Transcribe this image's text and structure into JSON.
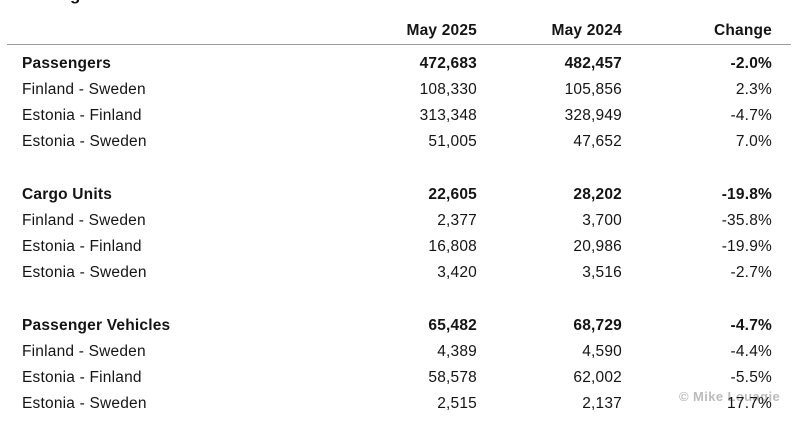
{
  "page": {
    "cropped_title_fragment": "g",
    "watermark": "© Mike Louagie"
  },
  "table": {
    "columns": [
      "May 2025",
      "May 2024",
      "Change"
    ],
    "groups": [
      {
        "header": {
          "label": "Passengers",
          "may2025": "472,683",
          "may2024": "482,457",
          "change": "-2.0%"
        },
        "rows": [
          {
            "label": "Finland - Sweden",
            "may2025": "108,330",
            "may2024": "105,856",
            "change": "2.3%"
          },
          {
            "label": "Estonia - Finland",
            "may2025": "313,348",
            "may2024": "328,949",
            "change": "-4.7%"
          },
          {
            "label": "Estonia - Sweden",
            "may2025": "51,005",
            "may2024": "47,652",
            "change": "7.0%"
          }
        ]
      },
      {
        "header": {
          "label": "Cargo Units",
          "may2025": "22,605",
          "may2024": "28,202",
          "change": "-19.8%"
        },
        "rows": [
          {
            "label": "Finland - Sweden",
            "may2025": "2,377",
            "may2024": "3,700",
            "change": "-35.8%"
          },
          {
            "label": "Estonia - Finland",
            "may2025": "16,808",
            "may2024": "20,986",
            "change": "-19.9%"
          },
          {
            "label": "Estonia - Sweden",
            "may2025": "3,420",
            "may2024": "3,516",
            "change": "-2.7%"
          }
        ]
      },
      {
        "header": {
          "label": "Passenger Vehicles",
          "may2025": "65,482",
          "may2024": "68,729",
          "change": "-4.7%"
        },
        "rows": [
          {
            "label": "Finland - Sweden",
            "may2025": "4,389",
            "may2024": "4,590",
            "change": "-4.4%"
          },
          {
            "label": "Estonia - Finland",
            "may2025": "58,578",
            "may2024": "62,002",
            "change": "-5.5%"
          },
          {
            "label": "Estonia - Sweden",
            "may2025": "2,515",
            "may2024": "2,137",
            "change": "17.7%"
          }
        ]
      }
    ]
  },
  "chart_data": {
    "type": "table",
    "title": "",
    "columns": [
      "",
      "May 2025",
      "May 2024",
      "Change"
    ],
    "rows": [
      [
        "Passengers",
        "472,683",
        "482,457",
        "-2.0%"
      ],
      [
        "Finland - Sweden",
        "108,330",
        "105,856",
        "2.3%"
      ],
      [
        "Estonia - Finland",
        "313,348",
        "328,949",
        "-4.7%"
      ],
      [
        "Estonia - Sweden",
        "51,005",
        "47,652",
        "7.0%"
      ],
      [
        "Cargo Units",
        "22,605",
        "28,202",
        "-19.8%"
      ],
      [
        "Finland - Sweden",
        "2,377",
        "3,700",
        "-35.8%"
      ],
      [
        "Estonia - Finland",
        "16,808",
        "20,986",
        "-19.9%"
      ],
      [
        "Estonia - Sweden",
        "3,420",
        "3,516",
        "-2.7%"
      ],
      [
        "Passenger Vehicles",
        "65,482",
        "68,729",
        "-4.7%"
      ],
      [
        "Finland - Sweden",
        "4,389",
        "4,590",
        "-4.4%"
      ],
      [
        "Estonia - Finland",
        "58,578",
        "62,002",
        "-5.5%"
      ],
      [
        "Estonia - Sweden",
        "2,515",
        "2,137",
        "17.7%"
      ]
    ],
    "layout_hints": {
      "bold_rows": [
        0,
        4,
        8
      ],
      "numeric_columns_right_aligned": true,
      "header_rule": true,
      "watermark": "© Mike Louagie"
    }
  }
}
